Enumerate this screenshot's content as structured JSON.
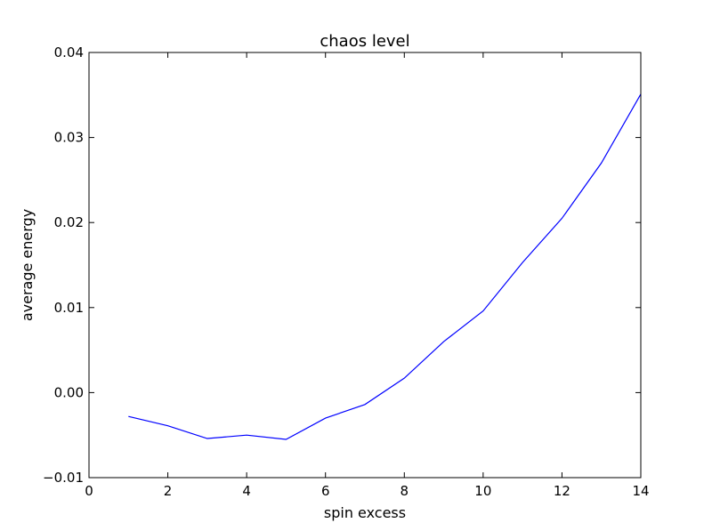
{
  "chart_data": {
    "type": "line",
    "title": "chaos level",
    "xlabel": "spin excess",
    "ylabel": "average energy",
    "xlim": [
      0,
      14
    ],
    "ylim": [
      -0.01,
      0.04
    ],
    "xticks": [
      0,
      2,
      4,
      6,
      8,
      10,
      12,
      14
    ],
    "xtick_labels": [
      "0",
      "2",
      "4",
      "6",
      "8",
      "10",
      "12",
      "14"
    ],
    "yticks": [
      -0.01,
      0.0,
      0.01,
      0.02,
      0.03,
      0.04
    ],
    "ytick_labels": [
      "−0.01",
      "0.00",
      "0.01",
      "0.02",
      "0.03",
      "0.04"
    ],
    "grid": false,
    "series": [
      {
        "color": "#0000ff",
        "x": [
          1,
          2,
          3,
          4,
          5,
          6,
          7,
          8,
          9,
          10,
          11,
          12,
          13,
          14
        ],
        "y": [
          -0.0028,
          -0.0039,
          -0.0054,
          -0.005,
          -0.0055,
          -0.003,
          -0.0014,
          0.0017,
          0.006,
          0.0096,
          0.0153,
          0.0205,
          0.027,
          0.0351
        ]
      }
    ]
  }
}
